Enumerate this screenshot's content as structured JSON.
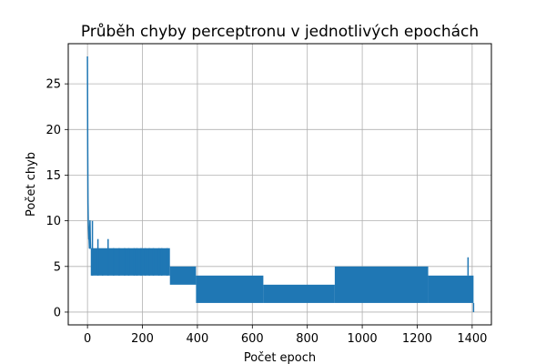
{
  "chart_data": {
    "type": "line",
    "title": "Průběh chyby perceptronu v jednotlivých epochách",
    "xlabel": "Počet epoch",
    "ylabel": "Počet chyb",
    "xlim": [
      -70,
      1470
    ],
    "ylim": [
      -1.4,
      29.4
    ],
    "xticks": [
      0,
      200,
      400,
      600,
      800,
      1000,
      1200,
      1400
    ],
    "yticks": [
      0,
      5,
      10,
      15,
      20,
      25
    ],
    "grid": true,
    "legend": "none",
    "series": [
      {
        "color": "#1f77b4",
        "segments": [
          {
            "x": [
              0,
              1,
              2,
              3,
              4,
              5,
              6,
              7,
              8,
              9,
              10,
              11,
              12
            ],
            "y": [
              28,
              18,
              12,
              10,
              9,
              8,
              8,
              7,
              9,
              10,
              8,
              7,
              7
            ]
          },
          {
            "x": [
              12,
              300
            ],
            "y_low": 4,
            "y_high": 7
          },
          {
            "x": [
              300,
              395
            ],
            "y_low": 3,
            "y_high": 5
          },
          {
            "x": [
              395,
              640
            ],
            "y_low": 1,
            "y_high": 4
          },
          {
            "x": [
              640,
              900
            ],
            "y_low": 1,
            "y_high": 3
          },
          {
            "x": [
              900,
              1240
            ],
            "y_low": 1,
            "y_high": 5
          },
          {
            "x": [
              1240,
              1405
            ],
            "y_low": 1,
            "y_high": 4
          }
        ],
        "spikes": [
          {
            "x": 18,
            "y": 10
          },
          {
            "x": 28,
            "y": 4
          },
          {
            "x": 38,
            "y": 8
          },
          {
            "x": 55,
            "y": 6
          },
          {
            "x": 75,
            "y": 8
          },
          {
            "x": 95,
            "y": 7
          },
          {
            "x": 115,
            "y": 7
          },
          {
            "x": 135,
            "y": 7
          },
          {
            "x": 150,
            "y": 7
          },
          {
            "x": 170,
            "y": 7
          },
          {
            "x": 180,
            "y": 7
          },
          {
            "x": 195,
            "y": 7
          },
          {
            "x": 210,
            "y": 7
          },
          {
            "x": 225,
            "y": 7
          },
          {
            "x": 240,
            "y": 7
          },
          {
            "x": 260,
            "y": 7
          },
          {
            "x": 270,
            "y": 7
          },
          {
            "x": 290,
            "y": 7
          },
          {
            "x": 1385,
            "y": 6
          }
        ],
        "end": {
          "x": 1405,
          "y": 0
        }
      }
    ]
  }
}
